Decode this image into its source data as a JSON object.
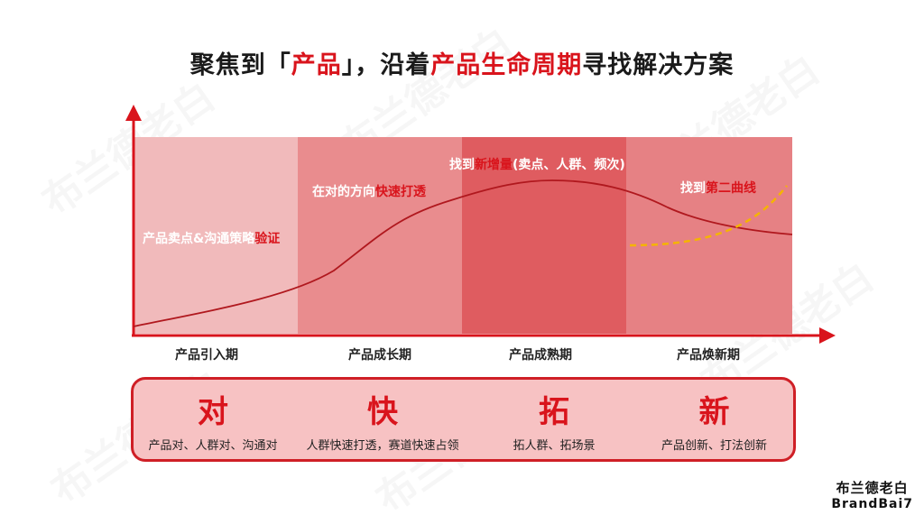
{
  "title": {
    "part1": "聚焦到「",
    "highlight1": "产品",
    "part2": "」，沿着",
    "highlight2": "产品生命周期",
    "part3": "寻找解决方案"
  },
  "phases": [
    {
      "label": "产品引入期"
    },
    {
      "label": "产品成长期"
    },
    {
      "label": "产品成熟期"
    },
    {
      "label": "产品焕新期"
    }
  ],
  "annotations": [
    {
      "text": "产品卖点&沟通策略",
      "highlight": "验证"
    },
    {
      "text": "在对的方向",
      "highlight": "快速打透"
    },
    {
      "text": "找到",
      "highlight": "新增量",
      "suffix": "(卖点、人群、频次)"
    },
    {
      "text": "找到",
      "highlight": "第二曲线"
    }
  ],
  "strategies": [
    {
      "word": "对",
      "desc": "产品对、人群对、沟通对"
    },
    {
      "word": "快",
      "desc": "人群快速打透，赛道快速占领"
    },
    {
      "word": "拓",
      "desc": "拓人群、拓场景"
    },
    {
      "word": "新",
      "desc": "产品创新、打法创新"
    }
  ],
  "logo": {
    "cn": "布兰德老白",
    "en": "BrandBai7"
  },
  "watermark": "布兰德老白",
  "colors": {
    "accent": "#d9141c",
    "curve": "#b0181e",
    "second_curve": "#f5b400"
  }
}
